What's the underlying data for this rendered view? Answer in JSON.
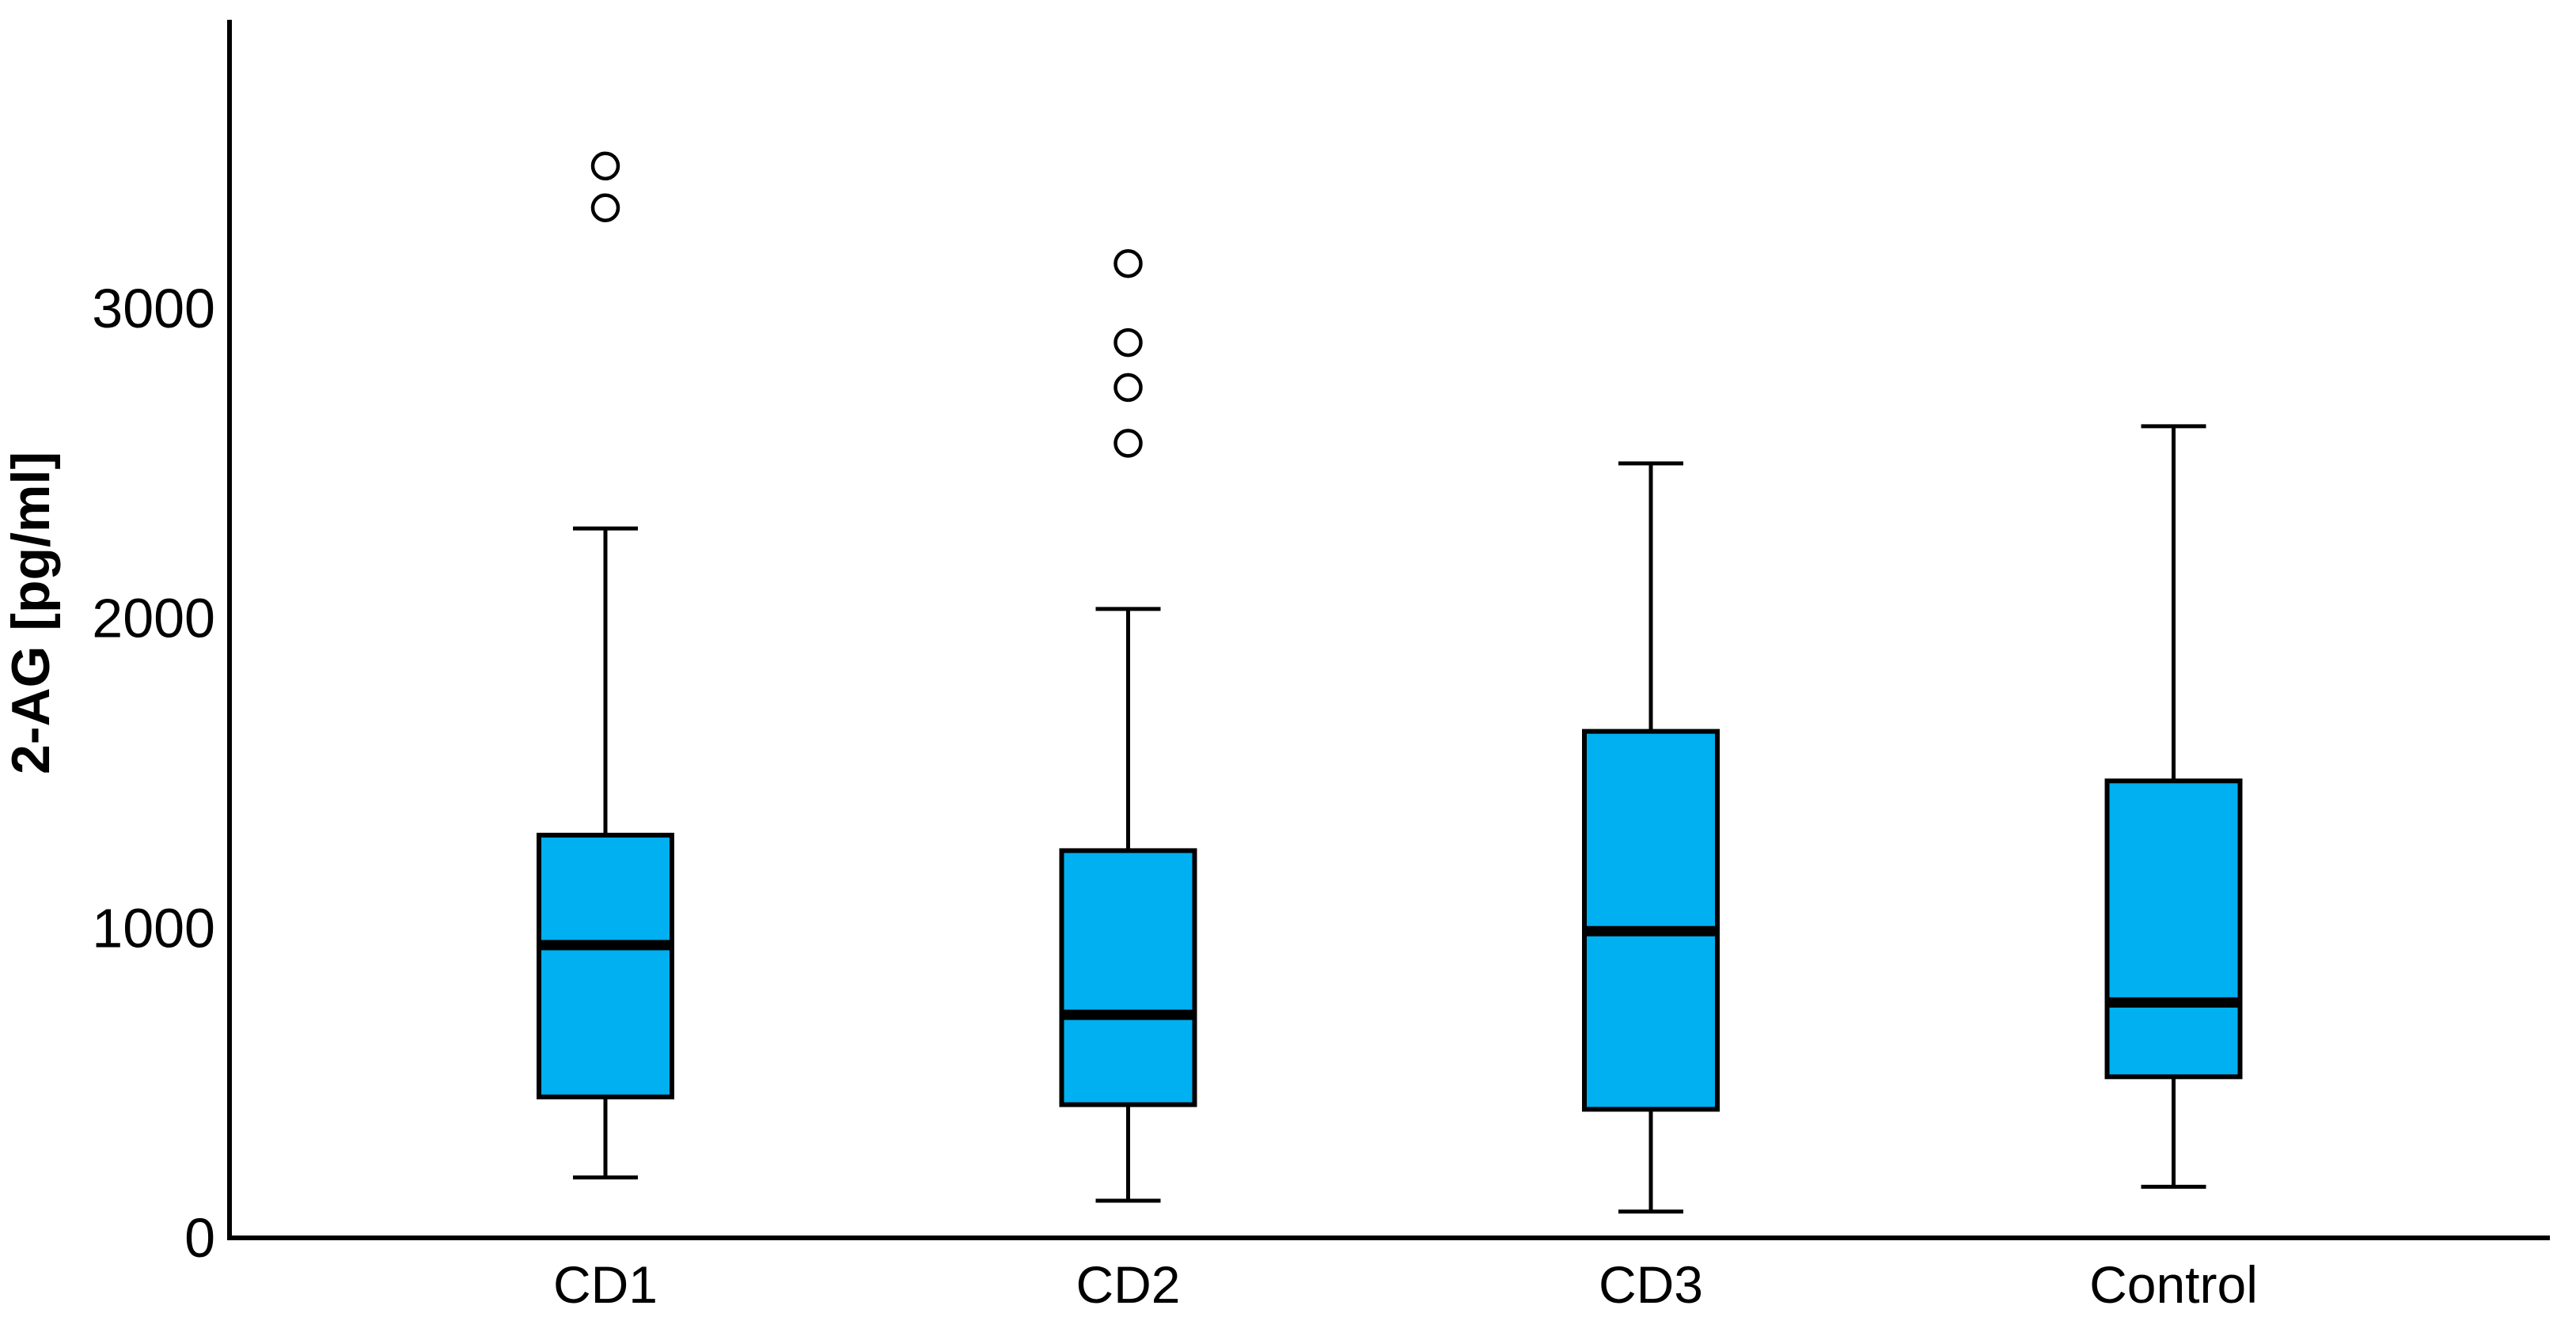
{
  "chart_data": {
    "type": "boxplot",
    "ylabel": "2-AG [pg/ml]",
    "categories": [
      "CD1",
      "CD2",
      "CD3",
      "Control"
    ],
    "y_ticks": [
      0,
      1000,
      2000,
      3000
    ],
    "ylim": [
      0,
      3930
    ],
    "grid": false,
    "legend": "none",
    "groups": [
      {
        "label": "CD1",
        "whisker_low": 195,
        "q1": 455,
        "median": 945,
        "q3": 1300,
        "whisker_high": 2290,
        "outliers": [
          3325,
          3460
        ]
      },
      {
        "label": "CD2",
        "whisker_low": 120,
        "q1": 430,
        "median": 720,
        "q3": 1250,
        "whisker_high": 2030,
        "outliers": [
          2565,
          2745,
          2890,
          3145
        ]
      },
      {
        "label": "CD3",
        "whisker_low": 85,
        "q1": 415,
        "median": 990,
        "q3": 1635,
        "whisker_high": 2500,
        "outliers": []
      },
      {
        "label": "Control",
        "whisker_low": 165,
        "q1": 520,
        "median": 760,
        "q3": 1475,
        "whisker_high": 2620,
        "outliers": []
      }
    ],
    "colors": {
      "box_fill": "#00B0F0",
      "line": "#000000",
      "background": "#FFFFFF",
      "outlier_fill": "#FFFFFF"
    }
  }
}
